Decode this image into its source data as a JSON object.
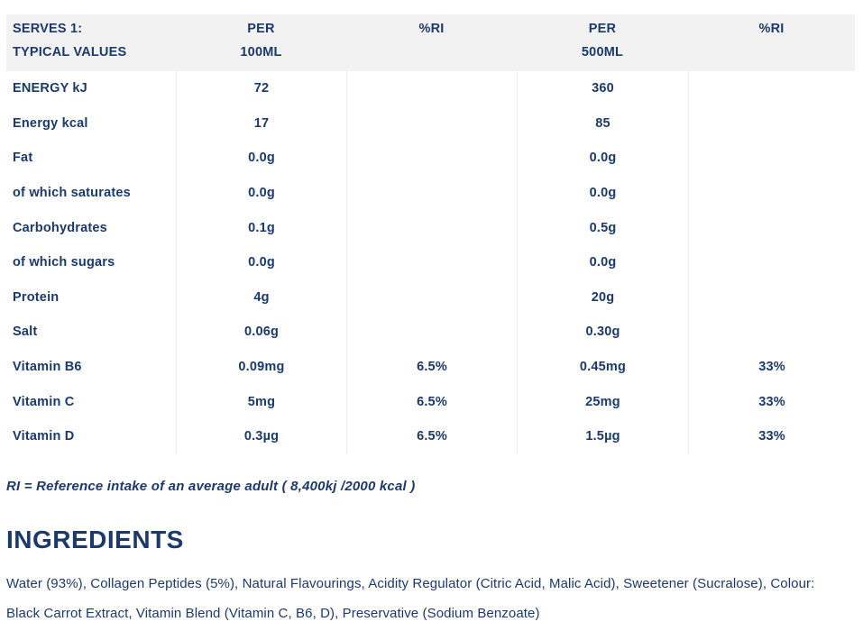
{
  "colors": {
    "text_navy": "#1b3a6b",
    "header_background": "#f2f2f2",
    "divider": "#ededed"
  },
  "table": {
    "header": {
      "serves_line1": "SERVES 1:",
      "serves_line2": "TYPICAL VALUES",
      "per100_line1": "PER",
      "per100_line2": "100ML",
      "ri100_label": "%RI",
      "per500_line1": "PER",
      "per500_line2": "500ML",
      "ri500_label": "%RI"
    },
    "rows": [
      {
        "label": "ENERGY kJ",
        "per100": "72",
        "ri100": "",
        "per500": "360",
        "ri500": ""
      },
      {
        "label": "Energy kcal",
        "per100": "17",
        "ri100": "",
        "per500": "85",
        "ri500": ""
      },
      {
        "label": "Fat",
        "per100": "0.0g",
        "ri100": "",
        "per500": "0.0g",
        "ri500": ""
      },
      {
        "label": "of which saturates",
        "per100": "0.0g",
        "ri100": "",
        "per500": "0.0g",
        "ri500": ""
      },
      {
        "label": "Carbohydrates",
        "per100": "0.1g",
        "ri100": "",
        "per500": "0.5g",
        "ri500": ""
      },
      {
        "label": "of which sugars",
        "per100": "0.0g",
        "ri100": "",
        "per500": "0.0g",
        "ri500": ""
      },
      {
        "label": "Protein",
        "per100": "4g",
        "ri100": "",
        "per500": "20g",
        "ri500": ""
      },
      {
        "label": "Salt",
        "per100": "0.06g",
        "ri100": "",
        "per500": "0.30g",
        "ri500": ""
      },
      {
        "label": "Vitamin B6",
        "per100": "0.09mg",
        "ri100": "6.5%",
        "per500": "0.45mg",
        "ri500": "33%"
      },
      {
        "label": "Vitamin C",
        "per100": "5mg",
        "ri100": "6.5%",
        "per500": "25mg",
        "ri500": "33%"
      },
      {
        "label": "Vitamin D",
        "per100": "0.3µg",
        "ri100": "6.5%",
        "per500": "1.5µg",
        "ri500": "33%"
      }
    ]
  },
  "footnote": "RI = Reference intake of an average adult ( 8,400kj /2000 kcal )",
  "ingredients": {
    "heading": "INGREDIENTS",
    "text": "Water (93%), Collagen Peptides (5%), Natural Flavourings, Acidity Regulator (Citric Acid, Malic Acid), Sweetener (Sucralose), Colour: Black Carrot Extract, Vitamin Blend (Vitamin C, B6, D), Preservative (Sodium Benzoate)"
  }
}
